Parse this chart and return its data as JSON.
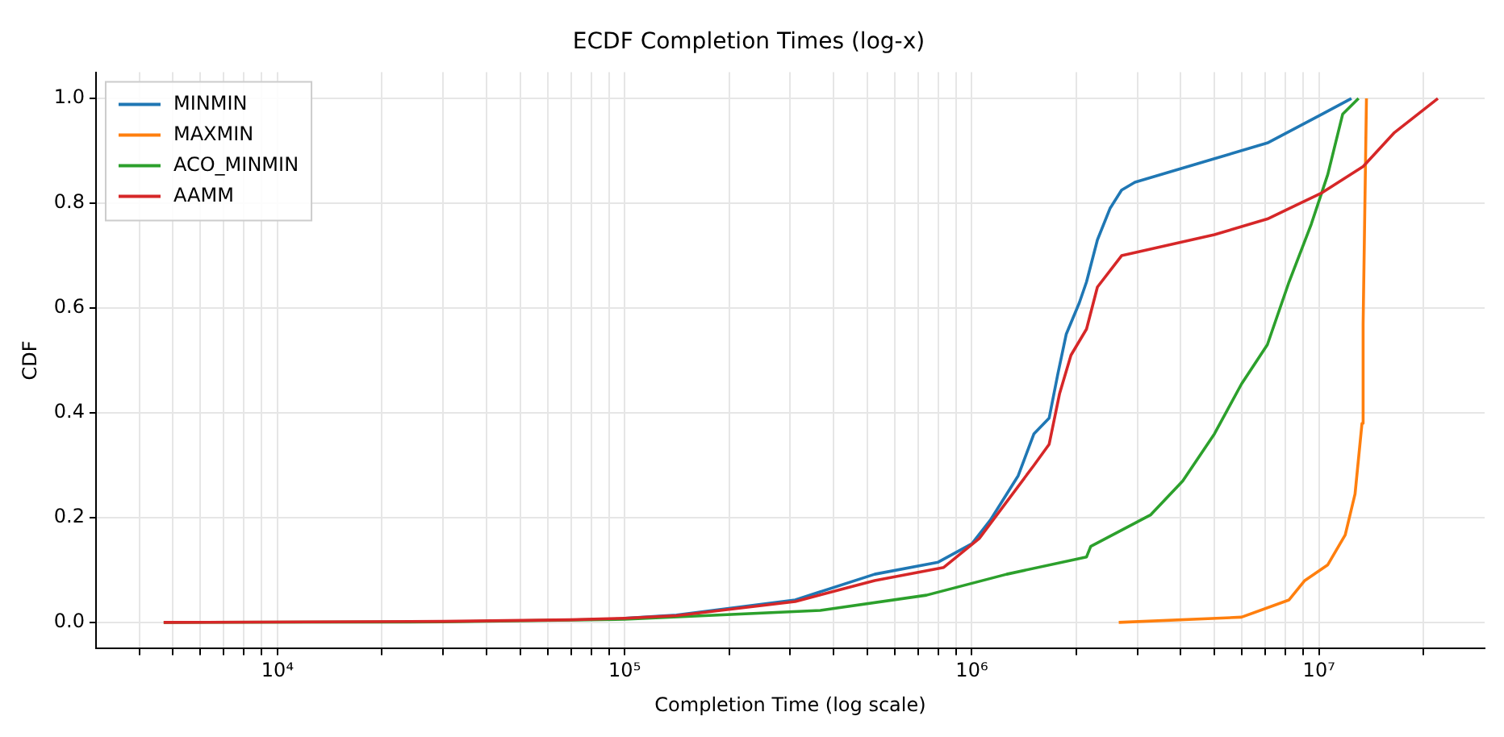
{
  "chart_data": {
    "type": "line",
    "title": "ECDF Completion Times (log-x)",
    "xlabel": "Completion Time (log scale)",
    "ylabel": "CDF",
    "log": "x",
    "grid": true,
    "legend": "top left",
    "marker": "none",
    "line_style": "solid",
    "xlim": [
      3000,
      30000000
    ],
    "ylim": [
      -0.05,
      1.05
    ],
    "xticks": [
      {
        "value": 4000,
        "label": null
      },
      {
        "value": 5000,
        "label": null
      },
      {
        "value": 6000,
        "label": null
      },
      {
        "value": 7000,
        "label": null
      },
      {
        "value": 8000,
        "label": null
      },
      {
        "value": 9000,
        "label": null
      },
      {
        "value": 10000,
        "label": "10⁴"
      },
      {
        "value": 20000,
        "label": null
      },
      {
        "value": 30000,
        "label": null
      },
      {
        "value": 40000,
        "label": null
      },
      {
        "value": 50000,
        "label": null
      },
      {
        "value": 60000,
        "label": null
      },
      {
        "value": 70000,
        "label": null
      },
      {
        "value": 80000,
        "label": null
      },
      {
        "value": 90000,
        "label": null
      },
      {
        "value": 100000,
        "label": "10⁵"
      },
      {
        "value": 200000,
        "label": null
      },
      {
        "value": 300000,
        "label": null
      },
      {
        "value": 400000,
        "label": null
      },
      {
        "value": 500000,
        "label": null
      },
      {
        "value": 600000,
        "label": null
      },
      {
        "value": 700000,
        "label": null
      },
      {
        "value": 800000,
        "label": null
      },
      {
        "value": 900000,
        "label": null
      },
      {
        "value": 1000000,
        "label": "10⁶"
      },
      {
        "value": 2000000,
        "label": null
      },
      {
        "value": 3000000,
        "label": null
      },
      {
        "value": 4000000,
        "label": null
      },
      {
        "value": 5000000,
        "label": null
      },
      {
        "value": 6000000,
        "label": null
      },
      {
        "value": 7000000,
        "label": null
      },
      {
        "value": 8000000,
        "label": null
      },
      {
        "value": 9000000,
        "label": null
      },
      {
        "value": 10000000,
        "label": "10⁷"
      },
      {
        "value": 20000000,
        "label": null
      }
    ],
    "yticks": [
      {
        "value": 0,
        "label": "0.0"
      },
      {
        "value": 0.2,
        "label": "0.2"
      },
      {
        "value": 0.4,
        "label": "0.4"
      },
      {
        "value": 0.6,
        "label": "0.6"
      },
      {
        "value": 0.8,
        "label": "0.8"
      },
      {
        "value": 1,
        "label": "1.0"
      }
    ],
    "series": [
      {
        "name": "MINMIN",
        "color": "#1f77b4",
        "x": [
          100000,
          141000,
          310000,
          525000,
          800000,
          1000000,
          1130000,
          1360000,
          1510000,
          1670000,
          1770000,
          1870000,
          2040000,
          2140000,
          2300000,
          2500000,
          2700000,
          2950000,
          5000000,
          7100000,
          10200000,
          12400000
        ],
        "values": [
          0.008,
          0.014,
          0.043,
          0.092,
          0.115,
          0.15,
          0.195,
          0.28,
          0.36,
          0.39,
          0.475,
          0.55,
          0.61,
          0.65,
          0.73,
          0.79,
          0.825,
          0.84,
          0.885,
          0.915,
          0.97,
          1.0
        ]
      },
      {
        "name": "MAXMIN",
        "color": "#ff7f0e",
        "x": [
          2650000,
          5980000,
          8200000,
          9100000,
          10600000,
          11900000,
          12700000,
          13300000,
          13400000,
          13700000
        ],
        "values": [
          0,
          0.01,
          0.043,
          0.08,
          0.11,
          0.167,
          0.245,
          0.38,
          0.57,
          1.0
        ]
      },
      {
        "name": "ACO_MINMIN",
        "color": "#2ca02c",
        "x": [
          4700,
          30000,
          100000,
          366000,
          740000,
          1260000,
          2140000,
          2200000,
          3270000,
          4050000,
          5000000,
          5980000,
          7100000,
          8200000,
          9500000,
          10600000,
          11700000,
          13000000
        ],
        "values": [
          0,
          0.001,
          0.006,
          0.023,
          0.052,
          0.092,
          0.125,
          0.145,
          0.205,
          0.27,
          0.36,
          0.455,
          0.53,
          0.65,
          0.76,
          0.855,
          0.97,
          1.0
        ]
      },
      {
        "name": "AAMM",
        "color": "#d62728",
        "x": [
          4700,
          30000,
          70000,
          100000,
          141000,
          310000,
          525000,
          830000,
          1050000,
          1510000,
          1670000,
          1790000,
          1930000,
          2140000,
          2300000,
          2700000,
          5000000,
          7100000,
          10200000,
          13400000,
          16500000,
          22000000
        ],
        "values": [
          0,
          0.002,
          0.005,
          0.008,
          0.013,
          0.04,
          0.08,
          0.105,
          0.16,
          0.3,
          0.34,
          0.437,
          0.51,
          0.56,
          0.64,
          0.7,
          0.74,
          0.77,
          0.82,
          0.87,
          0.935,
          1.0
        ]
      }
    ]
  }
}
